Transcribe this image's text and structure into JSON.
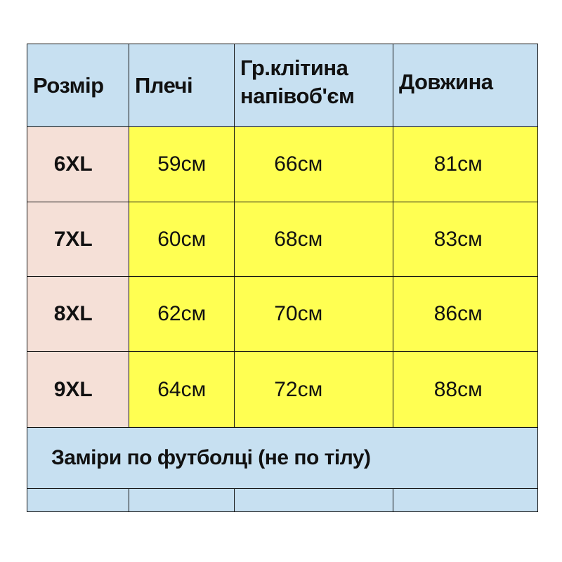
{
  "table": {
    "headers": [
      "Розмір",
      "Плечі",
      "Гр.клітина напівоб'єм",
      "Довжина"
    ],
    "rows": [
      {
        "size": "6XL",
        "shoulders": "59см",
        "chest": "66см",
        "length": "81см"
      },
      {
        "size": "7XL",
        "shoulders": "60см",
        "chest": "68см",
        "length": "83см"
      },
      {
        "size": "8XL",
        "shoulders": "62см",
        "chest": "70см",
        "length": "86см"
      },
      {
        "size": "9XL",
        "shoulders": "64см",
        "chest": "72см",
        "length": "88см"
      }
    ],
    "footer_note": "Заміри по футболці (не по тілу)"
  },
  "colors": {
    "header_bg": "#c7e0f1",
    "size_bg": "#f5e0d7",
    "value_bg": "#ffff52"
  }
}
